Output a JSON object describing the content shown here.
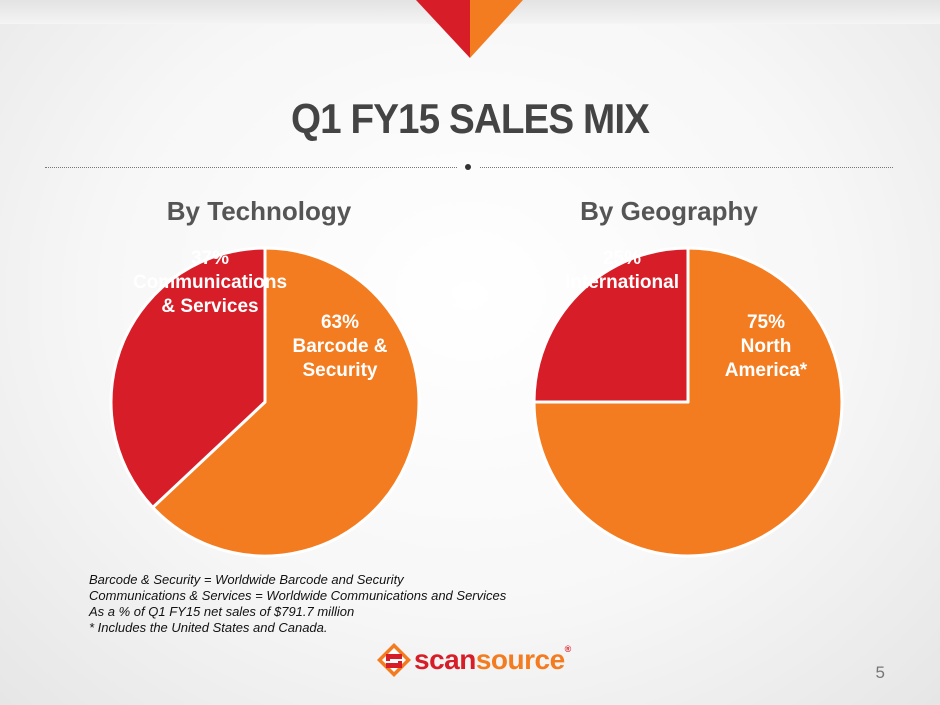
{
  "slide": {
    "title": "Q1 FY15 SALES MIX",
    "page_number": "5"
  },
  "colors": {
    "orange": "#f47c20",
    "red": "#d71e28",
    "title_gray": "#444444"
  },
  "chart_data": [
    {
      "type": "pie",
      "title": "By Technology",
      "slices": [
        {
          "value": 63,
          "pct_label": "63%",
          "name_lines": [
            "Barcode &",
            "Security"
          ],
          "color": "#f47c20"
        },
        {
          "value": 37,
          "pct_label": "37%",
          "name_lines": [
            "Communications",
            "& Services"
          ],
          "color": "#d71e28"
        }
      ]
    },
    {
      "type": "pie",
      "title": "By Geography",
      "slices": [
        {
          "value": 75,
          "pct_label": "75%",
          "name_lines": [
            "North",
            "America*"
          ],
          "color": "#f47c20"
        },
        {
          "value": 25,
          "pct_label": "25%",
          "name_lines": [
            "International"
          ],
          "color": "#d71e28"
        }
      ]
    }
  ],
  "footnotes": [
    "Barcode & Security = Worldwide Barcode and Security",
    "Communications & Services = Worldwide Communications and Services",
    "As a % of Q1 FY15 net sales of $791.7 million",
    "* Includes the United States and Canada."
  ],
  "logo": {
    "text_part1": "scan",
    "text_part2": "source",
    "reg": "®"
  }
}
